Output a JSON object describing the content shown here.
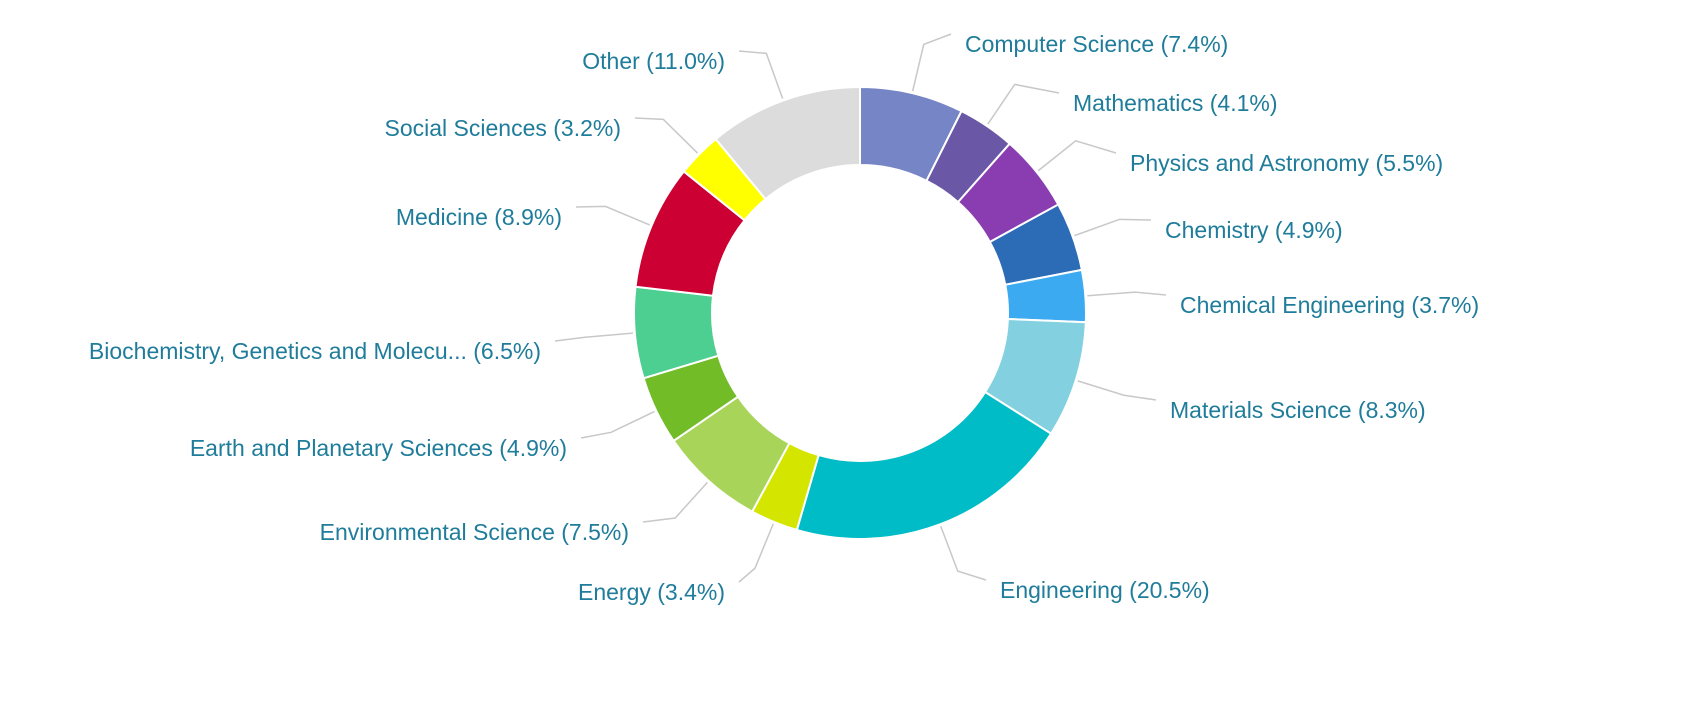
{
  "chart_data": {
    "type": "donut",
    "categories": [
      "Computer Science",
      "Mathematics",
      "Physics and Astronomy",
      "Chemistry",
      "Chemical Engineering",
      "Materials Science",
      "Engineering",
      "Energy",
      "Environmental Science",
      "Earth and Planetary Sciences",
      "Biochemistry, Genetics and Molecu...",
      "Medicine",
      "Social Sciences",
      "Other"
    ],
    "values": [
      7.4,
      4.1,
      5.5,
      4.9,
      3.7,
      8.3,
      20.5,
      3.4,
      7.5,
      4.9,
      6.5,
      8.9,
      3.2,
      11.0
    ],
    "value_labels": [
      "(7.4%)",
      "(4.1%)",
      "(5.5%)",
      "(4.9%)",
      "(3.7%)",
      "(8.3%)",
      "(20.5%)",
      "(3.4%)",
      "(7.5%)",
      "(4.9%)",
      "(6.5%)",
      "(8.9%)",
      "(3.2%)",
      "(11.0%)"
    ],
    "colors": [
      "#7585c5",
      "#6a58a6",
      "#8a3db0",
      "#2c6bb6",
      "#3baaf0",
      "#82d0e0",
      "#00bcc6",
      "#d4e600",
      "#a8d45a",
      "#72bc28",
      "#4ccf90",
      "#cc0033",
      "#ffff00",
      "#dcdcdc"
    ]
  }
}
